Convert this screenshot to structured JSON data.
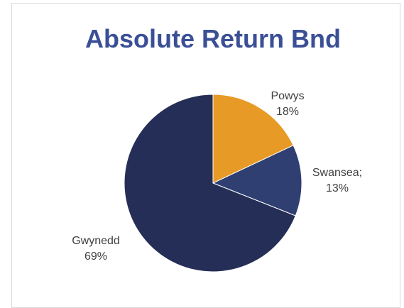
{
  "chart_data": {
    "type": "pie",
    "title": "Absolute Return Bnd",
    "slices": [
      {
        "label": "Powys",
        "value_text": "18%",
        "value": 18,
        "color": "#e89a26"
      },
      {
        "label": "Swansea;",
        "value_text": "13%",
        "value": 13,
        "color": "#2f3f72"
      },
      {
        "label": "Gwynedd",
        "value_text": "69%",
        "value": 69,
        "color": "#252e56"
      }
    ],
    "legend": "none"
  }
}
